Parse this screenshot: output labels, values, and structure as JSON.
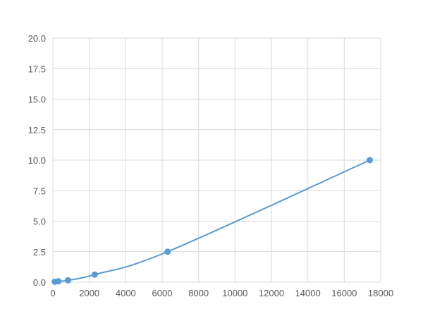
{
  "chart_data": {
    "type": "scatter",
    "title": "",
    "xlabel": "",
    "ylabel": "",
    "xlim": [
      0,
      18000
    ],
    "ylim": [
      0,
      20
    ],
    "xticks": [
      0,
      2000,
      4000,
      6000,
      8000,
      10000,
      12000,
      14000,
      16000,
      18000
    ],
    "yticks": [
      "0.0",
      "2.5",
      "5.0",
      "7.5",
      "10.0",
      "12.5",
      "15.0",
      "17.5",
      "20.0"
    ],
    "grid": true,
    "trendline": "smooth curve",
    "color": "#5b9bd5",
    "series": [
      {
        "x": [
          108,
          300,
          830,
          2300,
          6300,
          17400
        ],
        "y": [
          0.039,
          0.078,
          0.156,
          0.625,
          2.5,
          10.0
        ]
      }
    ]
  }
}
